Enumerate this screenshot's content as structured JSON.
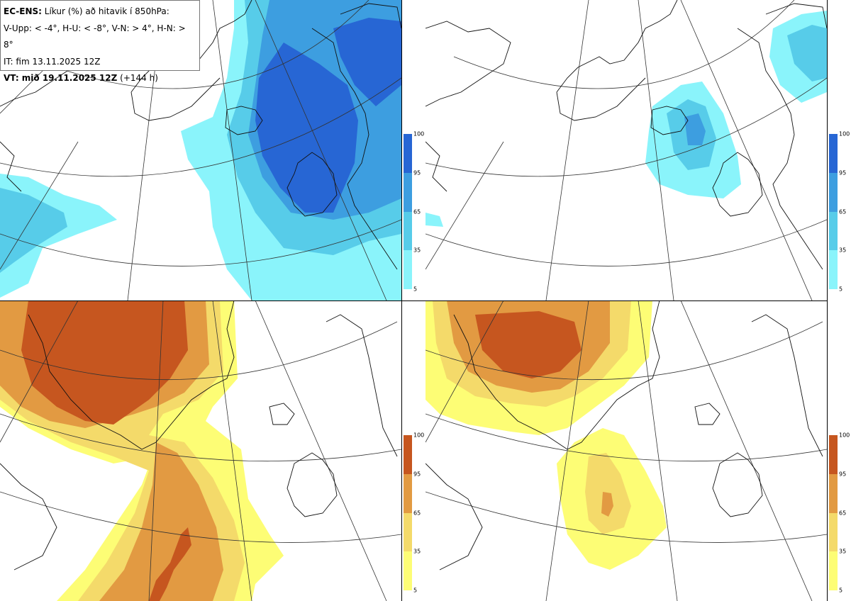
{
  "header": {
    "model": "EC-ENS:",
    "title": "Líkur (%) að hitavik í 850hPa:",
    "thresholds": "V-Upp: < -4°, H-U: < -8°, V-N: > 4°, H-N: > 8°",
    "initial_time": "IT: fim 13.11.2025 12Z",
    "valid_label": "VT: mið 19.11.2025 12Z",
    "lead": "(+144 h)"
  },
  "colorbars": {
    "ticks": [
      "100",
      "95",
      "65",
      "35",
      "5"
    ],
    "cold_colors": [
      "#8af4fb",
      "#57cce9",
      "#3d9ee0",
      "#2766d4"
    ],
    "warm_colors": [
      "#fdfd75",
      "#f4da6a",
      "#e29a42",
      "#c6561f"
    ]
  },
  "panels": [
    {
      "id": "top-left",
      "name": "V-Upp",
      "scheme": "cold"
    },
    {
      "id": "top-right",
      "name": "H-U",
      "scheme": "cold"
    },
    {
      "id": "bottom-left",
      "name": "V-N",
      "scheme": "warm"
    },
    {
      "id": "bottom-right",
      "name": "H-N",
      "scheme": "warm"
    }
  ]
}
